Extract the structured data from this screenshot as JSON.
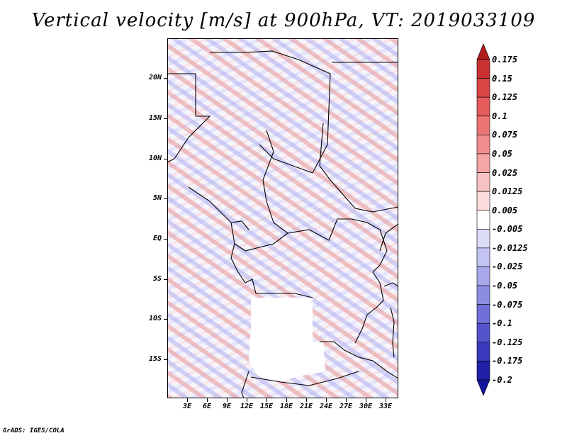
{
  "title": "Vertical velocity [m/s] at 900hPa, VT: 2019033109",
  "credit": "GrADS: IGES/COLA",
  "map": {
    "lat_labels": [
      "20N",
      "15N",
      "10N",
      "5N",
      "EQ",
      "5S",
      "10S",
      "15S"
    ],
    "lon_labels": [
      "3E",
      "6E",
      "9E",
      "12E",
      "15E",
      "18E",
      "21E",
      "24E",
      "27E",
      "30E",
      "33E"
    ],
    "background_field": "vertical-velocity-shading"
  },
  "colorbar": {
    "levels": [
      "0.175",
      "0.15",
      "0.125",
      "0.1",
      "0.075",
      "0.05",
      "0.025",
      "0.0125",
      "0.005",
      "-0.005",
      "-0.0125",
      "-0.025",
      "-0.05",
      "-0.075",
      "-0.1",
      "-0.125",
      "-0.175",
      "-0.2"
    ],
    "colors": [
      "#b21b1b",
      "#c93030",
      "#d94545",
      "#e55a5a",
      "#ec7474",
      "#f08d8d",
      "#f4a6a6",
      "#f8c2c2",
      "#fbdcdc",
      "#ffffff",
      "#dcdcf8",
      "#c4c4f2",
      "#a8a8ea",
      "#8c8ce2",
      "#7070d8",
      "#5454cc",
      "#3a3abd",
      "#2020a8",
      "#14149a"
    ]
  }
}
